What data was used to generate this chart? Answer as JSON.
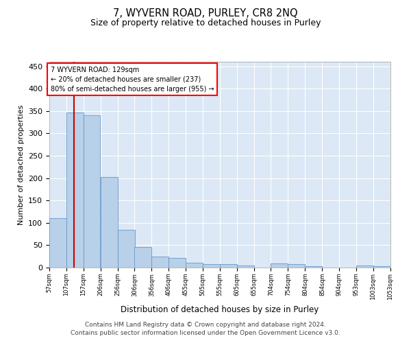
{
  "title": "7, WYVERN ROAD, PURLEY, CR8 2NQ",
  "subtitle": "Size of property relative to detached houses in Purley",
  "xlabel": "Distribution of detached houses by size in Purley",
  "ylabel": "Number of detached properties",
  "bar_color": "#b8d0e8",
  "bar_edge_color": "#6699cc",
  "background_color": "#dce8f5",
  "annotation_box_text": "7 WYVERN ROAD: 129sqm\n← 20% of detached houses are smaller (237)\n80% of semi-detached houses are larger (955) →",
  "vline_x": 129,
  "vline_color": "#cc0000",
  "bins": [
    57,
    107,
    157,
    206,
    256,
    306,
    356,
    406,
    455,
    505,
    555,
    605,
    655,
    704,
    754,
    804,
    854,
    904,
    953,
    1003,
    1053
  ],
  "values": [
    110,
    347,
    340,
    202,
    84,
    46,
    25,
    22,
    11,
    8,
    7,
    5,
    0,
    9,
    8,
    3,
    0,
    0,
    4,
    3,
    2
  ],
  "yticks": [
    0,
    50,
    100,
    150,
    200,
    250,
    300,
    350,
    400,
    450
  ],
  "ylim": [
    0,
    460
  ],
  "footer_line1": "Contains HM Land Registry data © Crown copyright and database right 2024.",
  "footer_line2": "Contains public sector information licensed under the Open Government Licence v3.0."
}
